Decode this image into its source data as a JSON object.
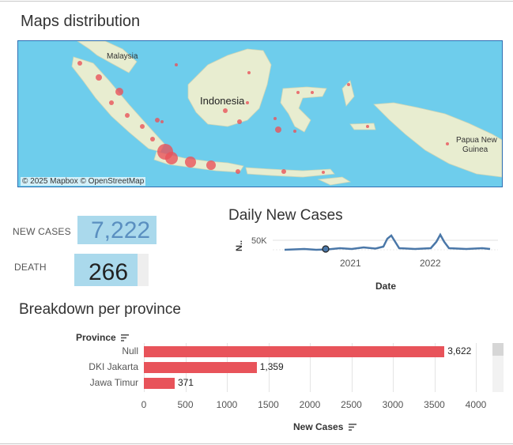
{
  "map_section": {
    "title": "Maps distribution",
    "labels": {
      "malaysia": "Malaysia",
      "indonesia": "Indonesia",
      "papua_line1": "Papua New",
      "papua_line2": "Guinea"
    },
    "attribution": "© 2025 Mapbox  © OpenStreetMap"
  },
  "kpi": {
    "new_cases_label": "NEW CASES",
    "new_cases_value": "7,222",
    "death_label": "DEATH",
    "death_value": "266"
  },
  "trend": {
    "title": "Daily New Cases",
    "y_axis_label": "N..",
    "y_tick": "50K",
    "x_ticks": [
      "2021",
      "2022"
    ],
    "x_axis_title": "Date"
  },
  "breakdown": {
    "title": "Breakdown per province",
    "row_header": "Province",
    "x_axis_title": "New Cases",
    "colors": {
      "bar": "#e8535a"
    }
  },
  "chart_data": {
    "type": "bar",
    "orientation": "horizontal",
    "categories": [
      "Null",
      "DKI Jakarta",
      "Jawa Timur"
    ],
    "values": [
      3622,
      1359,
      371
    ],
    "value_labels": [
      "3,622",
      "1,359",
      "371"
    ],
    "xlabel": "New Cases",
    "ylabel": "Province",
    "xlim": [
      0,
      4200
    ],
    "x_ticks": [
      0,
      500,
      1000,
      1500,
      2000,
      2500,
      3000,
      3500,
      4000
    ]
  }
}
